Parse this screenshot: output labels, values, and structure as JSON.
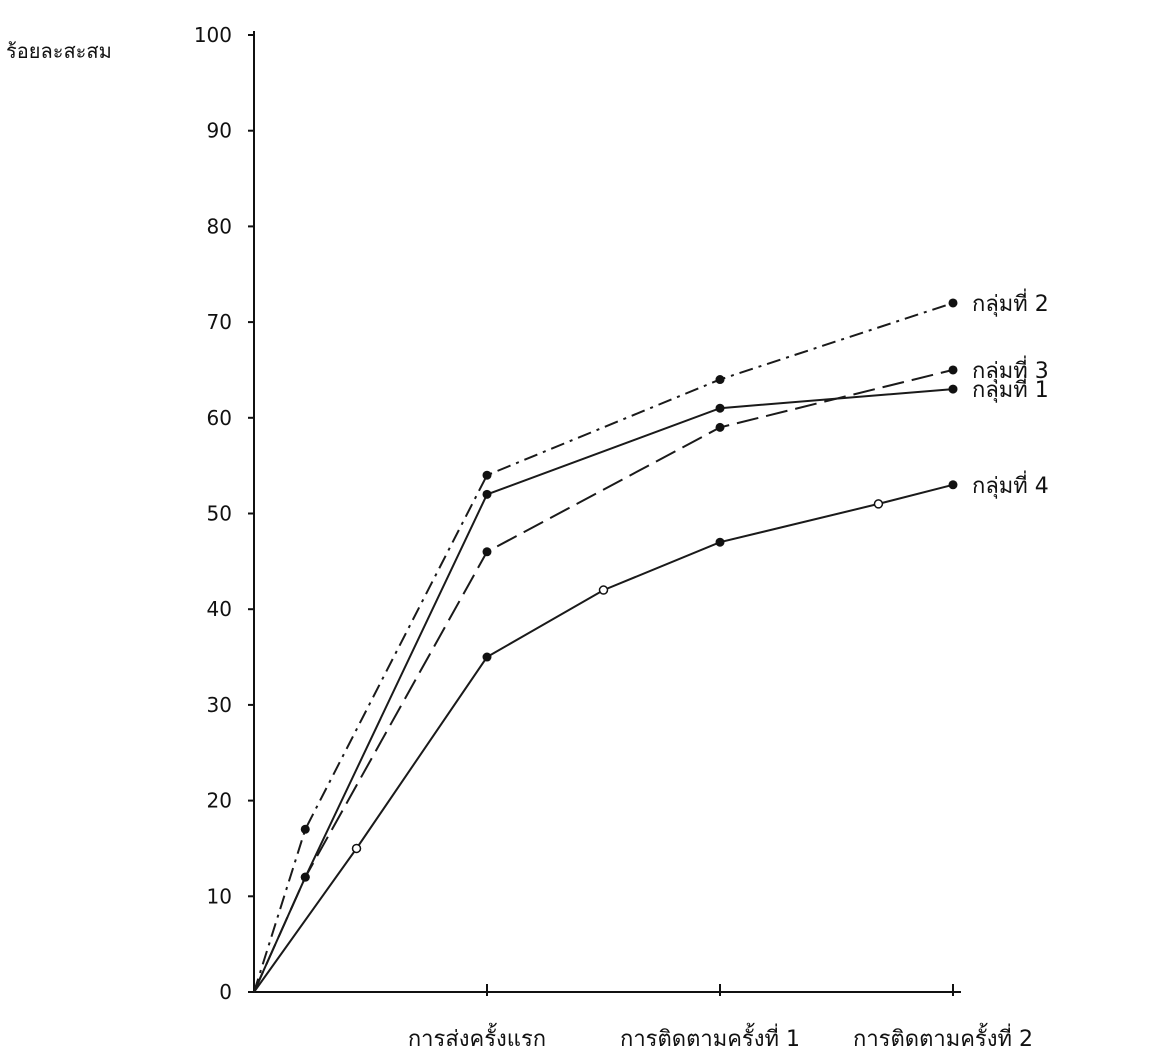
{
  "chart_data": {
    "type": "line",
    "ylabel": "ร้อยละสะสม",
    "ylim": [
      0,
      100
    ],
    "yticks": [
      0,
      10,
      20,
      30,
      40,
      50,
      60,
      70,
      80,
      90,
      100
    ],
    "categories": [
      "การส่งครั้งแรก",
      "การติดตามครั้งที่ 1",
      "การติดตามครั้งที่ 2"
    ],
    "grid": false,
    "legend": "labels at line ends (right)",
    "series": [
      {
        "name": "กลุ่มที่ 2",
        "line_style": "dash-dot",
        "points": [
          [
            0,
            0
          ],
          [
            0.22,
            17
          ],
          [
            1,
            54
          ],
          [
            2,
            64
          ],
          [
            3,
            72
          ]
        ]
      },
      {
        "name": "กลุ่มที่ 3",
        "line_style": "long-dash",
        "points": [
          [
            0,
            0
          ],
          [
            0.22,
            12
          ],
          [
            1,
            46
          ],
          [
            2,
            59
          ],
          [
            3,
            65
          ]
        ]
      },
      {
        "name": "กลุ่มที่ 1",
        "line_style": "solid",
        "points": [
          [
            0,
            0
          ],
          [
            0.22,
            12
          ],
          [
            1,
            52
          ],
          [
            2,
            61
          ],
          [
            3,
            63
          ]
        ]
      },
      {
        "name": "กลุ่มที่ 4",
        "line_style": "solid",
        "points": [
          [
            0,
            0
          ],
          [
            0.44,
            15
          ],
          [
            1,
            35
          ],
          [
            1.5,
            42
          ],
          [
            2,
            47
          ],
          [
            2.68,
            51
          ],
          [
            3,
            53
          ]
        ]
      }
    ]
  }
}
